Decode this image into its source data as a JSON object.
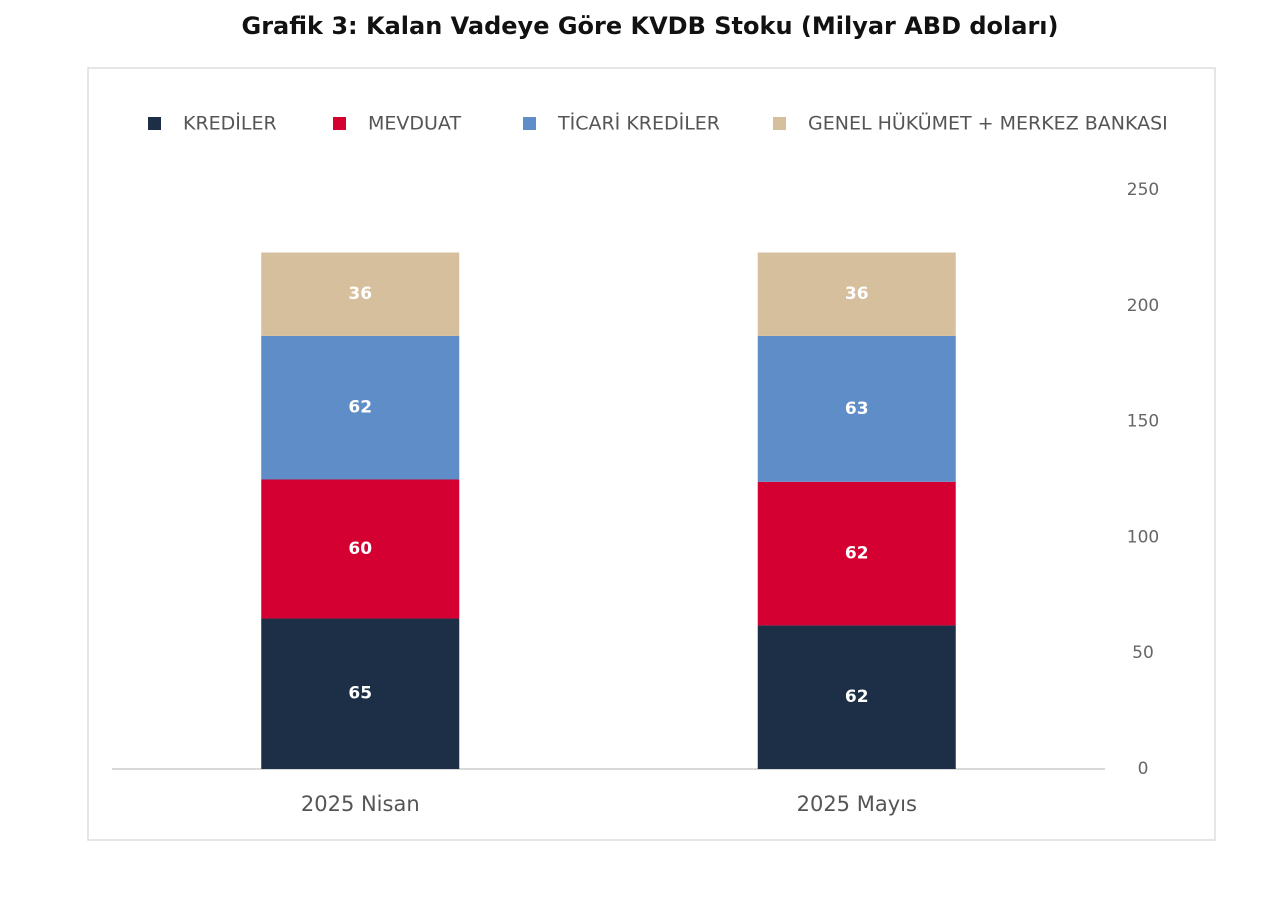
{
  "chart_data": {
    "type": "bar",
    "stacked": true,
    "title": "Grafik 3: Kalan Vadeye Göre KVDB Stoku (Milyar ABD doları)",
    "categories": [
      "2025 Nisan",
      "2025 Mayıs"
    ],
    "series": [
      {
        "name": "KREDİLER",
        "color": "#1c2f47",
        "values": [
          65,
          62
        ]
      },
      {
        "name": "MEVDUAT",
        "color": "#d50032",
        "values": [
          60,
          62
        ]
      },
      {
        "name": "TİCARİ KREDİLER",
        "color": "#5f8dc7",
        "values": [
          62,
          63
        ]
      },
      {
        "name": "GENEL HÜKÜMET + MERKEZ BANKASI",
        "color": "#d6bf9c",
        "values": [
          36,
          36
        ]
      }
    ],
    "ylim": [
      0,
      250
    ],
    "yticks": [
      0,
      50,
      100,
      150,
      200,
      250
    ],
    "y_axis_side": "right",
    "legend": "top"
  }
}
